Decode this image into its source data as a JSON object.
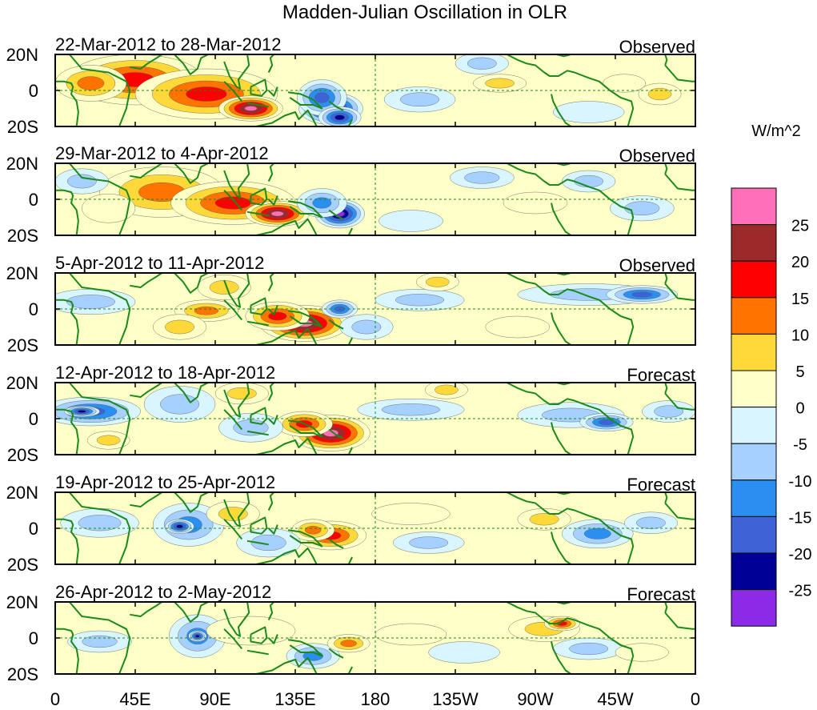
{
  "chart_data": {
    "type": "heatmap",
    "title": "Madden-Julian Oscillation in OLR",
    "units_label": "W/m^2",
    "x_ticks": [
      "0",
      "45E",
      "90E",
      "135E",
      "180",
      "135W",
      "90W",
      "45W",
      "0"
    ],
    "x_tick_lon": [
      0,
      45,
      90,
      135,
      180,
      225,
      270,
      315,
      360
    ],
    "y_ticks": [
      "20N",
      "0",
      "20S"
    ],
    "lat_range": [
      -20,
      20
    ],
    "lon_range": [
      0,
      360
    ],
    "levels": [
      "25",
      "20",
      "15",
      "10",
      "5",
      "0",
      "-5",
      "-10",
      "-15",
      "-20",
      "-25"
    ],
    "palette": [
      "#ff70b8",
      "#9c2a2a",
      "#ff0000",
      "#ff7300",
      "#ffd93a",
      "#ffffc8",
      "#d9f5ff",
      "#a5d0ff",
      "#2a8ff0",
      "#3d63d6",
      "#000096",
      "#8c2ae6"
    ],
    "panels": [
      {
        "period": "22-Mar-2012 to 28-Mar-2012",
        "label": "Observed",
        "blobs": [
          {
            "lon": 45,
            "lat": 6,
            "rx": 38,
            "ry": 14,
            "v": 18
          },
          {
            "lon": 85,
            "lat": -2,
            "rx": 40,
            "ry": 14,
            "v": 22
          },
          {
            "lon": 110,
            "lat": -10,
            "rx": 18,
            "ry": 7,
            "v": 28
          },
          {
            "lon": 20,
            "lat": 4,
            "rx": 20,
            "ry": 10,
            "v": 16
          },
          {
            "lon": 155,
            "lat": -10,
            "rx": 18,
            "ry": 9,
            "v": -29
          },
          {
            "lon": 150,
            "lat": -4,
            "rx": 14,
            "ry": 10,
            "v": -20
          },
          {
            "lon": 160,
            "lat": -15,
            "rx": 12,
            "ry": 6,
            "v": -24
          },
          {
            "lon": 205,
            "lat": -5,
            "rx": 20,
            "ry": 7,
            "v": -8
          },
          {
            "lon": 240,
            "lat": 15,
            "rx": 15,
            "ry": 6,
            "v": -9
          },
          {
            "lon": 250,
            "lat": 4,
            "rx": 15,
            "ry": 5,
            "v": 8
          },
          {
            "lon": 320,
            "lat": 4,
            "rx": 12,
            "ry": 5,
            "v": 6
          },
          {
            "lon": 340,
            "lat": -2,
            "rx": 12,
            "ry": 6,
            "v": 10
          },
          {
            "lon": 300,
            "lat": -12,
            "rx": 20,
            "ry": 6,
            "v": -6
          }
        ]
      },
      {
        "period": "29-Mar-2012 to 4-Apr-2012",
        "label": "Observed",
        "blobs": [
          {
            "lon": 60,
            "lat": 4,
            "rx": 35,
            "ry": 14,
            "v": 16
          },
          {
            "lon": 100,
            "lat": -2,
            "rx": 35,
            "ry": 12,
            "v": 22
          },
          {
            "lon": 125,
            "lat": -8,
            "rx": 18,
            "ry": 7,
            "v": 28
          },
          {
            "lon": 30,
            "lat": -5,
            "rx": 15,
            "ry": 8,
            "v": 6
          },
          {
            "lon": 160,
            "lat": -8,
            "rx": 14,
            "ry": 8,
            "v": -28
          },
          {
            "lon": 150,
            "lat": -2,
            "rx": 14,
            "ry": 8,
            "v": -15
          },
          {
            "lon": 15,
            "lat": 10,
            "rx": 15,
            "ry": 7,
            "v": -10
          },
          {
            "lon": 240,
            "lat": 12,
            "rx": 18,
            "ry": 6,
            "v": -8
          },
          {
            "lon": 270,
            "lat": -2,
            "rx": 18,
            "ry": 6,
            "v": 6
          },
          {
            "lon": 300,
            "lat": 10,
            "rx": 15,
            "ry": 6,
            "v": -9
          },
          {
            "lon": 330,
            "lat": -5,
            "rx": 18,
            "ry": 7,
            "v": -8
          },
          {
            "lon": 200,
            "lat": -12,
            "rx": 18,
            "ry": 6,
            "v": -5
          }
        ]
      },
      {
        "period": "5-Apr-2012 to 11-Apr-2012",
        "label": "Observed",
        "blobs": [
          {
            "lon": 140,
            "lat": -8,
            "rx": 25,
            "ry": 10,
            "v": 28
          },
          {
            "lon": 125,
            "lat": -4,
            "rx": 18,
            "ry": 8,
            "v": 20
          },
          {
            "lon": 85,
            "lat": -1,
            "rx": 18,
            "ry": 6,
            "v": 14
          },
          {
            "lon": 95,
            "lat": 12,
            "rx": 15,
            "ry": 7,
            "v": 10
          },
          {
            "lon": 70,
            "lat": -10,
            "rx": 15,
            "ry": 7,
            "v": 8
          },
          {
            "lon": 20,
            "lat": 4,
            "rx": 25,
            "ry": 7,
            "v": -12
          },
          {
            "lon": 160,
            "lat": 0,
            "rx": 10,
            "ry": 5,
            "v": -20
          },
          {
            "lon": 175,
            "lat": -10,
            "rx": 15,
            "ry": 7,
            "v": -12
          },
          {
            "lon": 205,
            "lat": 5,
            "rx": 25,
            "ry": 6,
            "v": -10
          },
          {
            "lon": 215,
            "lat": 15,
            "rx": 12,
            "ry": 5,
            "v": 10
          },
          {
            "lon": 300,
            "lat": 8,
            "rx": 40,
            "ry": 6,
            "v": -12
          },
          {
            "lon": 330,
            "lat": 8,
            "rx": 20,
            "ry": 5,
            "v": -18
          },
          {
            "lon": 260,
            "lat": -10,
            "rx": 18,
            "ry": 6,
            "v": 4
          }
        ]
      },
      {
        "period": "12-Apr-2012 to 18-Apr-2012",
        "label": "Forecast",
        "blobs": [
          {
            "lon": 155,
            "lat": -8,
            "rx": 22,
            "ry": 10,
            "v": 28
          },
          {
            "lon": 140,
            "lat": -3,
            "rx": 16,
            "ry": 7,
            "v": 19
          },
          {
            "lon": 20,
            "lat": 4,
            "rx": 28,
            "ry": 8,
            "v": -18
          },
          {
            "lon": 15,
            "lat": 4,
            "rx": 10,
            "ry": 3,
            "v": -24
          },
          {
            "lon": 70,
            "lat": 8,
            "rx": 20,
            "ry": 10,
            "v": -12
          },
          {
            "lon": 105,
            "lat": 14,
            "rx": 15,
            "ry": 6,
            "v": 10
          },
          {
            "lon": 110,
            "lat": -5,
            "rx": 18,
            "ry": 8,
            "v": -10
          },
          {
            "lon": 200,
            "lat": 5,
            "rx": 30,
            "ry": 6,
            "v": -9
          },
          {
            "lon": 220,
            "lat": 16,
            "rx": 12,
            "ry": 5,
            "v": 10
          },
          {
            "lon": 290,
            "lat": 2,
            "rx": 30,
            "ry": 7,
            "v": -12
          },
          {
            "lon": 310,
            "lat": -2,
            "rx": 15,
            "ry": 5,
            "v": -18
          },
          {
            "lon": 345,
            "lat": 4,
            "rx": 15,
            "ry": 6,
            "v": -12
          },
          {
            "lon": 30,
            "lat": -12,
            "rx": 12,
            "ry": 5,
            "v": 8
          }
        ]
      },
      {
        "period": "19-Apr-2012 to 25-Apr-2012",
        "label": "Forecast",
        "blobs": [
          {
            "lon": 75,
            "lat": 2,
            "rx": 20,
            "ry": 12,
            "v": -16
          },
          {
            "lon": 70,
            "lat": 1,
            "rx": 8,
            "ry": 4,
            "v": -24
          },
          {
            "lon": 25,
            "lat": 3,
            "rx": 22,
            "ry": 8,
            "v": -10
          },
          {
            "lon": 155,
            "lat": -4,
            "rx": 20,
            "ry": 8,
            "v": 19
          },
          {
            "lon": 145,
            "lat": -1,
            "rx": 12,
            "ry": 6,
            "v": 13
          },
          {
            "lon": 120,
            "lat": -8,
            "rx": 18,
            "ry": 8,
            "v": -12
          },
          {
            "lon": 100,
            "lat": 8,
            "rx": 15,
            "ry": 7,
            "v": 8
          },
          {
            "lon": 200,
            "lat": 8,
            "rx": 22,
            "ry": 6,
            "v": 7
          },
          {
            "lon": 210,
            "lat": -8,
            "rx": 20,
            "ry": 6,
            "v": -8
          },
          {
            "lon": 275,
            "lat": 5,
            "rx": 15,
            "ry": 6,
            "v": 12
          },
          {
            "lon": 305,
            "lat": -3,
            "rx": 20,
            "ry": 8,
            "v": -16
          },
          {
            "lon": 335,
            "lat": 3,
            "rx": 15,
            "ry": 6,
            "v": -10
          }
        ]
      },
      {
        "period": "26-Apr-2012 to 2-May-2012",
        "label": "Forecast",
        "blobs": [
          {
            "lon": 80,
            "lat": 1,
            "rx": 16,
            "ry": 12,
            "v": -15
          },
          {
            "lon": 80,
            "lat": 1,
            "rx": 5,
            "ry": 3,
            "v": -24
          },
          {
            "lon": 145,
            "lat": -10,
            "rx": 15,
            "ry": 7,
            "v": -15
          },
          {
            "lon": 165,
            "lat": -3,
            "rx": 12,
            "ry": 5,
            "v": 14
          },
          {
            "lon": 25,
            "lat": -2,
            "rx": 18,
            "ry": 6,
            "v": -9
          },
          {
            "lon": 110,
            "lat": 4,
            "rx": 25,
            "ry": 8,
            "v": 6
          },
          {
            "lon": 200,
            "lat": 2,
            "rx": 20,
            "ry": 6,
            "v": 6
          },
          {
            "lon": 230,
            "lat": -8,
            "rx": 20,
            "ry": 6,
            "v": -6
          },
          {
            "lon": 275,
            "lat": 5,
            "rx": 20,
            "ry": 7,
            "v": 12
          },
          {
            "lon": 285,
            "lat": 8,
            "rx": 10,
            "ry": 4,
            "v": 18
          },
          {
            "lon": 300,
            "lat": -6,
            "rx": 20,
            "ry": 6,
            "v": -10
          },
          {
            "lon": 330,
            "lat": -8,
            "rx": 15,
            "ry": 5,
            "v": 6
          }
        ]
      }
    ]
  }
}
